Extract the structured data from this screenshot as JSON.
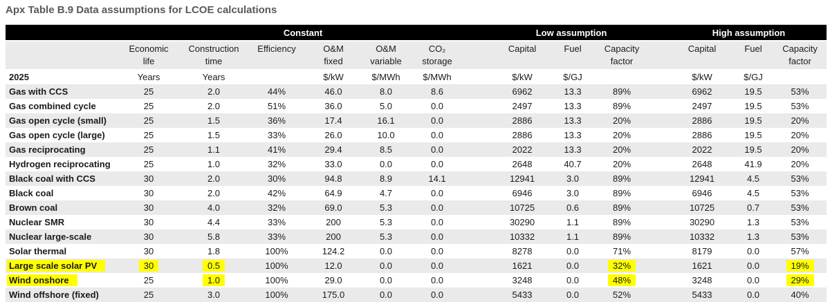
{
  "title": "Apx Table B.9 Data assumptions for LCOE calculations",
  "colors": {
    "highlight": "#ffff00",
    "row_band": "#eaeaea",
    "group_bar_bg": "#000000",
    "group_bar_text": "#ffffff",
    "title_text": "#595959"
  },
  "table": {
    "group_headers": [
      "Constant",
      "Low assumption",
      "High assumption"
    ],
    "year_label": "2025",
    "columns": [
      {
        "line1": "Economic",
        "line2": "life"
      },
      {
        "line1": "Construction",
        "line2": "time"
      },
      {
        "line1": "Efficiency",
        "line2": ""
      },
      {
        "line1": "O&M",
        "line2": "fixed"
      },
      {
        "line1": "O&M",
        "line2": "variable"
      },
      {
        "line1": "CO₂",
        "line2": "storage"
      },
      {
        "line1": "Capital",
        "line2": ""
      },
      {
        "line1": "Fuel",
        "line2": ""
      },
      {
        "line1": "Capacity",
        "line2": "factor"
      },
      {
        "line1": "Capital",
        "line2": ""
      },
      {
        "line1": "Fuel",
        "line2": ""
      },
      {
        "line1": "Capacity",
        "line2": "factor"
      }
    ],
    "units": [
      "Years",
      "Years",
      "",
      "$/kW",
      "$/MWh",
      "$/MWh",
      "$/kW",
      "$/GJ",
      "",
      "$/kW",
      "$/GJ",
      ""
    ],
    "rows": [
      {
        "label": "Gas with CCS",
        "values": [
          "25",
          "2.0",
          "44%",
          "46.0",
          "8.0",
          "8.6",
          "6962",
          "13.3",
          "89%",
          "6962",
          "19.5",
          "53%"
        ]
      },
      {
        "label": "Gas combined cycle",
        "values": [
          "25",
          "2.0",
          "51%",
          "36.0",
          "5.0",
          "0.0",
          "2497",
          "13.3",
          "89%",
          "2497",
          "19.5",
          "53%"
        ]
      },
      {
        "label": "Gas open cycle (small)",
        "values": [
          "25",
          "1.5",
          "36%",
          "17.4",
          "16.1",
          "0.0",
          "2886",
          "13.3",
          "20%",
          "2886",
          "19.5",
          "20%"
        ]
      },
      {
        "label": "Gas open cycle (large)",
        "values": [
          "25",
          "1.5",
          "33%",
          "26.0",
          "10.0",
          "0.0",
          "2886",
          "13.3",
          "20%",
          "2886",
          "19.5",
          "20%"
        ]
      },
      {
        "label": "Gas reciprocating",
        "values": [
          "25",
          "1.1",
          "41%",
          "29.4",
          "8.5",
          "0.0",
          "2022",
          "13.3",
          "20%",
          "2022",
          "19.5",
          "20%"
        ]
      },
      {
        "label": "Hydrogen reciprocating",
        "values": [
          "25",
          "1.0",
          "32%",
          "33.0",
          "0.0",
          "0.0",
          "2648",
          "40.7",
          "20%",
          "2648",
          "41.9",
          "20%"
        ]
      },
      {
        "label": "Black coal with CCS",
        "values": [
          "30",
          "2.0",
          "30%",
          "94.8",
          "8.9",
          "14.1",
          "12941",
          "3.0",
          "89%",
          "12941",
          "4.5",
          "53%"
        ]
      },
      {
        "label": "Black coal",
        "values": [
          "30",
          "2.0",
          "42%",
          "64.9",
          "4.7",
          "0.0",
          "6946",
          "3.0",
          "89%",
          "6946",
          "4.5",
          "53%"
        ]
      },
      {
        "label": "Brown coal",
        "values": [
          "30",
          "4.0",
          "32%",
          "69.0",
          "5.3",
          "0.0",
          "10725",
          "0.6",
          "89%",
          "10725",
          "0.7",
          "53%"
        ]
      },
      {
        "label": "Nuclear SMR",
        "values": [
          "30",
          "4.4",
          "33%",
          "200",
          "5.3",
          "0.0",
          "30290",
          "1.1",
          "89%",
          "30290",
          "1.3",
          "53%"
        ]
      },
      {
        "label": "Nuclear large-scale",
        "values": [
          "30",
          "5.8",
          "33%",
          "200",
          "5.3",
          "0.0",
          "10332",
          "1.1",
          "89%",
          "10332",
          "1.3",
          "53%"
        ]
      },
      {
        "label": "Solar thermal",
        "values": [
          "30",
          "1.8",
          "100%",
          "124.2",
          "0.0",
          "0.0",
          "8278",
          "0.0",
          "71%",
          "8179",
          "0.0",
          "57%"
        ]
      },
      {
        "label": "Large scale solar PV",
        "values": [
          "30",
          "0.5",
          "100%",
          "12.0",
          "0.0",
          "0.0",
          "1621",
          "0.0",
          "32%",
          "1621",
          "0.0",
          "19%"
        ],
        "highlight_label": true,
        "highlight_cols": [
          0,
          1,
          8,
          11
        ]
      },
      {
        "label": "Wind onshore",
        "values": [
          "25",
          "1.0",
          "100%",
          "29.0",
          "0.0",
          "0.0",
          "3248",
          "0.0",
          "48%",
          "3248",
          "0.0",
          "29%"
        ],
        "highlight_label": true,
        "highlight_cols": [
          1,
          8,
          11
        ]
      },
      {
        "label": "Wind offshore (fixed)",
        "values": [
          "25",
          "3.0",
          "100%",
          "175.0",
          "0.0",
          "0.0",
          "5433",
          "0.0",
          "52%",
          "5433",
          "0.0",
          "40%"
        ]
      }
    ]
  }
}
